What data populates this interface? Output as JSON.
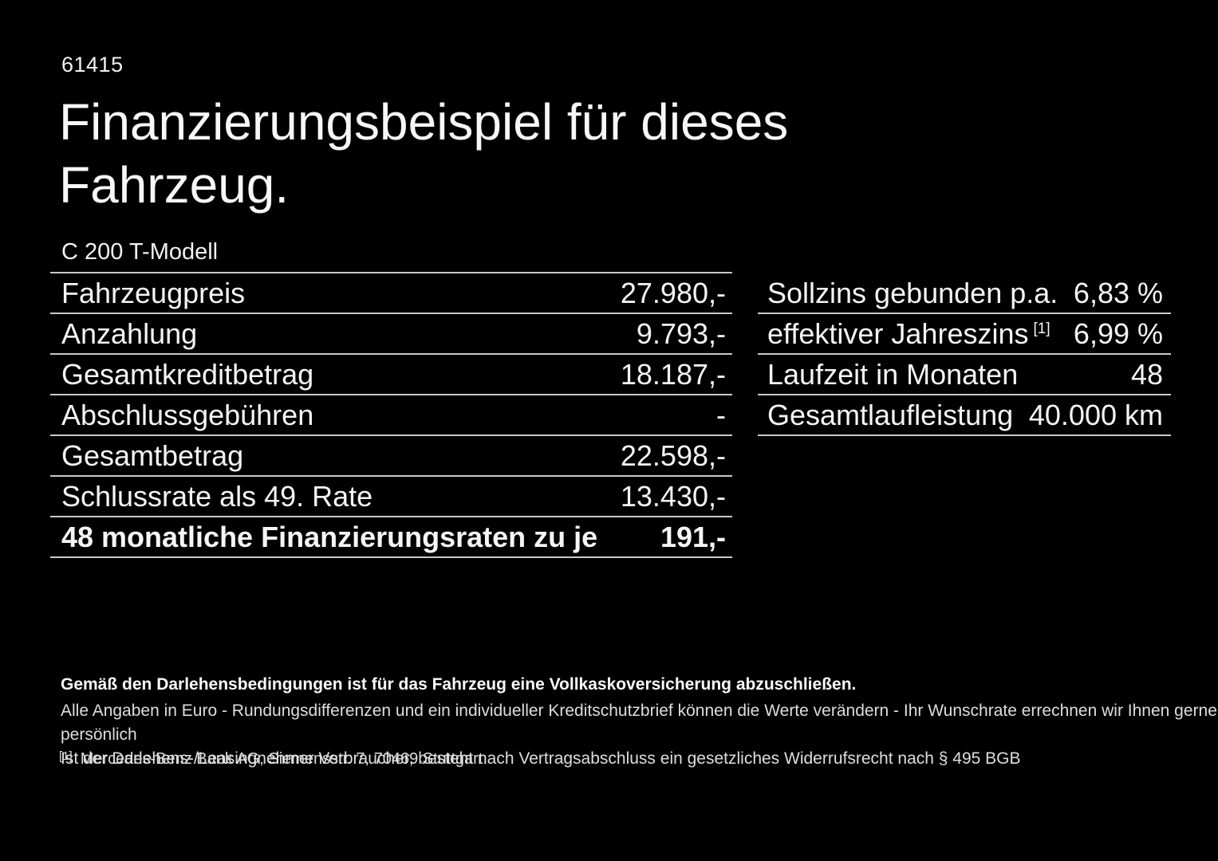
{
  "page": {
    "doc_number": "61415",
    "title": "Finanzierungsbeispiel für dieses Fahrzeug.",
    "vehicle_model": "C 200 T-Modell"
  },
  "finance_table": {
    "rows": [
      {
        "label": "Fahrzeugpreis",
        "value": "27.980,-",
        "bold": false
      },
      {
        "label": "Anzahlung",
        "value": "9.793,-",
        "bold": false
      },
      {
        "label": "Gesamtkreditbetrag",
        "value": "18.187,-",
        "bold": false
      },
      {
        "label": "Abschlussgebühren",
        "value": "-",
        "bold": false
      },
      {
        "label": "Gesamtbetrag",
        "value": "22.598,-",
        "bold": false
      },
      {
        "label": "Schlussrate als 49. Rate",
        "value": "13.430,-",
        "bold": false
      },
      {
        "label": "48 monatliche Finanzierungsraten zu je",
        "value": "191,-",
        "bold": true
      }
    ]
  },
  "conditions_table": {
    "rows": [
      {
        "label": "Sollzins gebunden p.a.",
        "value": "6,83 %",
        "bold": false
      },
      {
        "label": "effektiver Jahreszins",
        "sup": "[1]",
        "value": "6,99 %",
        "bold": false
      },
      {
        "label": "Laufzeit in Monaten",
        "value": "48",
        "bold": false
      },
      {
        "label": "Gesamtlaufleistung",
        "value": "40.000 km",
        "bold": false
      }
    ]
  },
  "footer": {
    "insurance_note": "Gemäß den Darlehensbedingungen ist für das Fahrzeug eine Vollkaskoversicherung abzuschließen.",
    "notes": [
      "Alle Angaben in Euro - Rundungsdifferenzen und ein individueller Kreditschutzbrief können die Werte verändern - Ihr Wunschrate errechnen wir Ihnen gerne persönlich",
      "Ist der Darlehens-/Leasingnehmer Verbraucher, besteht nach Vertragsabschluss ein gesetzliches Widerrufsrecht nach § 495 BGB"
    ],
    "footnote_marker": "[1]",
    "footnote_text": "Mercedes-Benz Bank AG, Siemensstr. 7, 70469 Stuttgart."
  },
  "colors": {
    "background": "#000000",
    "text": "#f5f5f5",
    "divider": "#c9c9c9"
  }
}
